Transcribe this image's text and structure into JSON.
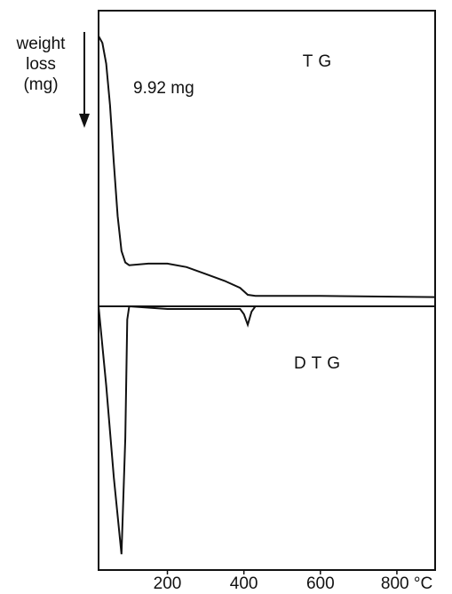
{
  "chart_data": [
    {
      "type": "line",
      "title": "TG",
      "ylabel": [
        "weight",
        "loss",
        "(mg)"
      ],
      "annotation": "9.92 mg",
      "x": [
        20,
        30,
        40,
        50,
        60,
        70,
        80,
        90,
        100,
        150,
        200,
        250,
        300,
        350,
        390,
        410,
        430,
        600,
        900
      ],
      "series": [
        {
          "color": "#111111",
          "values": [
            0,
            0.3,
            1.2,
            3,
            5.5,
            7.8,
            9.3,
            9.8,
            9.92,
            9.85,
            9.85,
            10.0,
            10.3,
            10.6,
            10.9,
            11.2,
            11.25,
            11.25,
            11.3
          ]
        }
      ],
      "xlim": [
        20,
        900
      ],
      "ylim": [
        -1.1,
        11.7
      ],
      "inverted": true
    },
    {
      "type": "line",
      "title": "DTG",
      "x": [
        20,
        40,
        60,
        80,
        90,
        95,
        100,
        200,
        390,
        400,
        410,
        420,
        430,
        900
      ],
      "series": [
        {
          "color": "#111111",
          "values": [
            0,
            30,
            65,
            94,
            50,
            5,
            0,
            1,
            1,
            3,
            7,
            2,
            0,
            0
          ]
        }
      ],
      "xlim": [
        20,
        900
      ],
      "ylim": [
        0,
        100
      ],
      "inverted": true,
      "xticks": [
        200,
        400,
        600,
        {
          "value": 800,
          "label": "800 °C"
        }
      ]
    }
  ]
}
